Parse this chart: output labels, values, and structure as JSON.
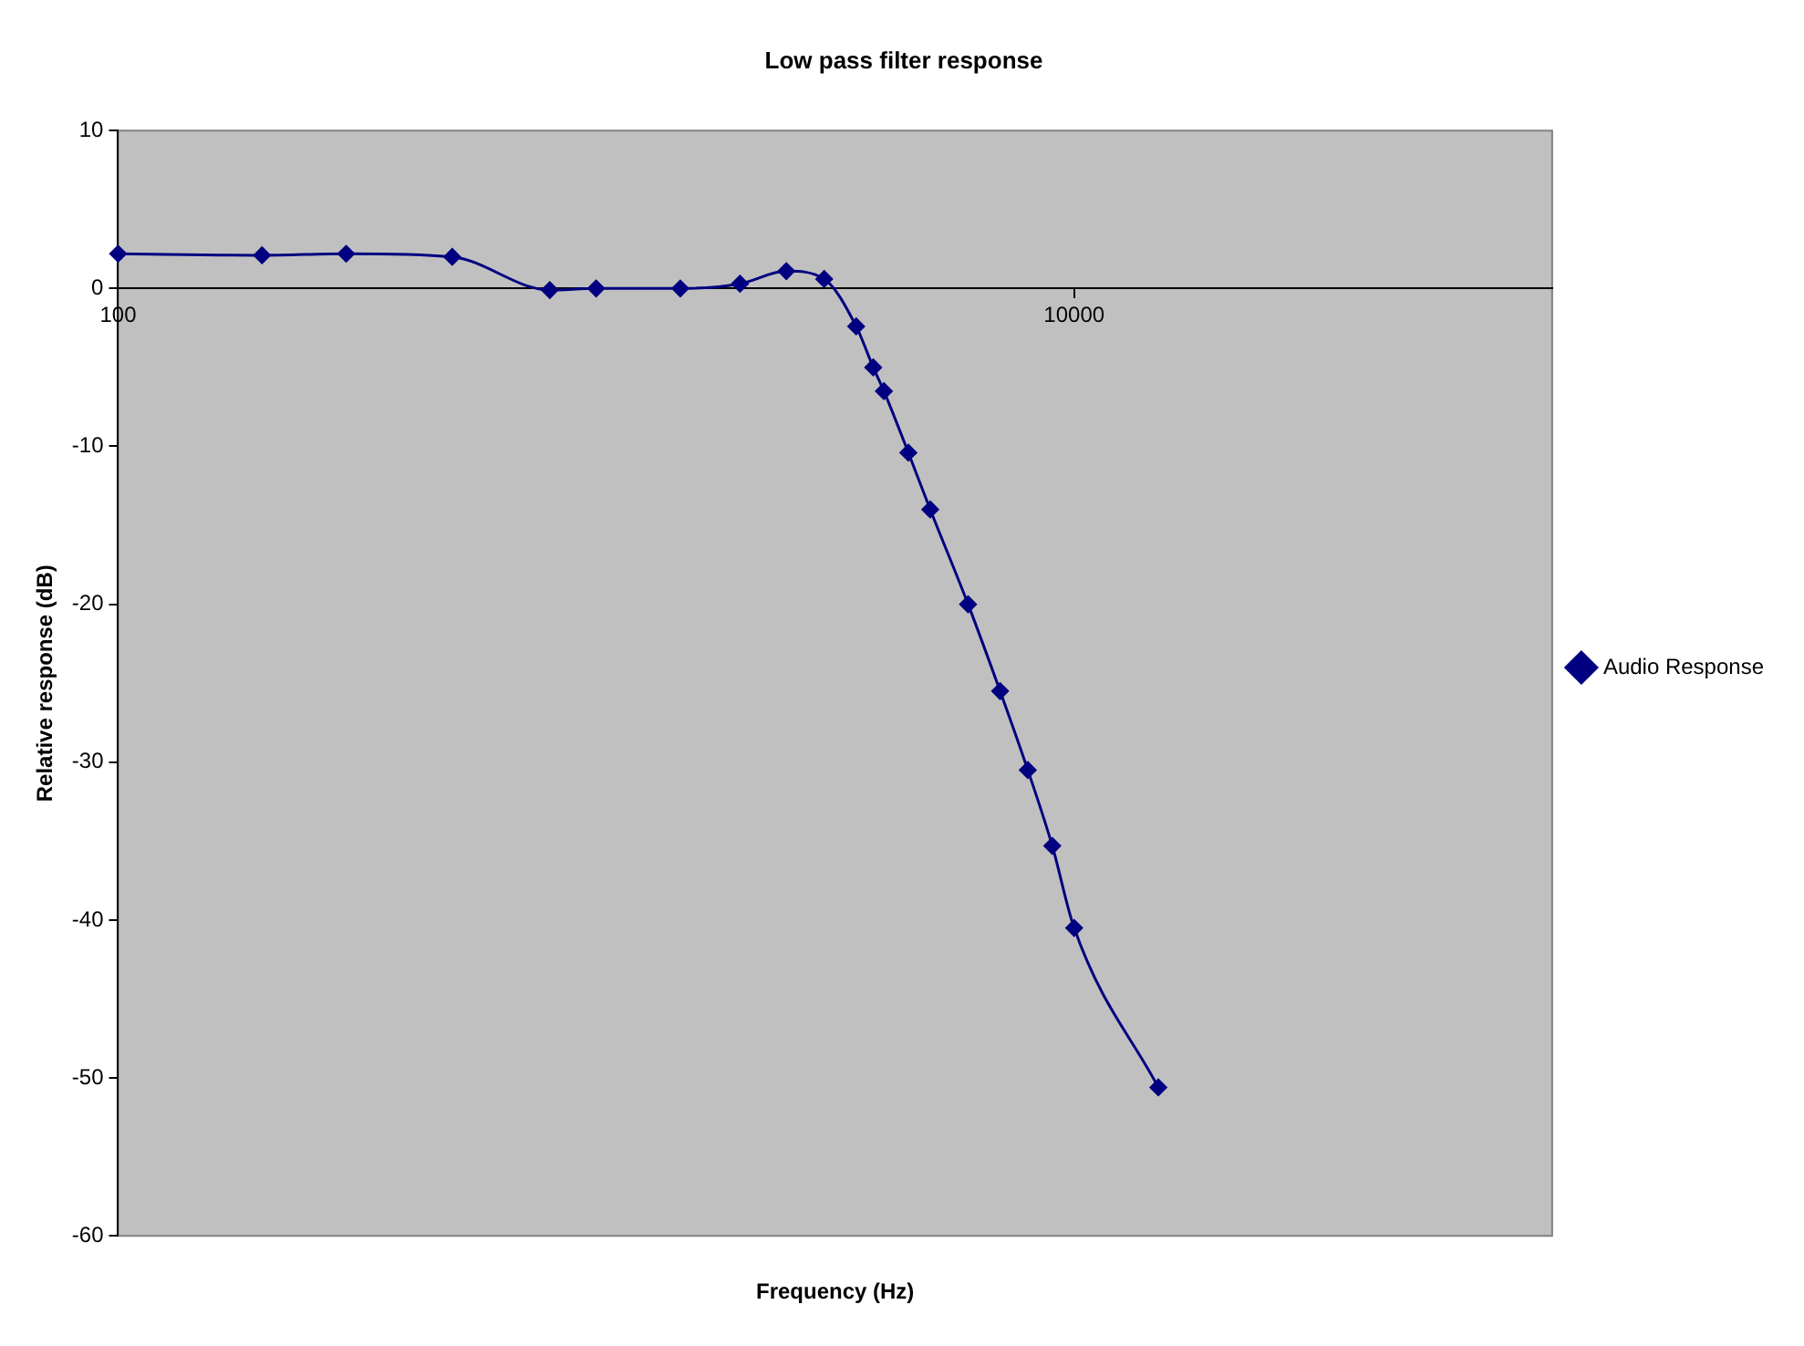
{
  "chart_data": {
    "type": "line",
    "title": "Low pass filter response",
    "xlabel": "Frequency (Hz)",
    "ylabel": "Relative response (dB)",
    "x": [
      100,
      200,
      300,
      500,
      800,
      1000,
      1500,
      2000,
      2500,
      3000,
      3500,
      3800,
      4000,
      4500,
      5000,
      6000,
      7000,
      8000,
      9000,
      10000,
      15000
    ],
    "series": [
      {
        "name": "Audio Response",
        "color": "#000080",
        "values": [
          2.2,
          2.1,
          2.2,
          2.0,
          -0.1,
          0,
          0,
          0.3,
          1.1,
          0.6,
          -2.4,
          -5.0,
          -6.5,
          -10.4,
          -14.0,
          -20.0,
          -25.5,
          -30.5,
          -35.3,
          -40.5,
          -50.6
        ]
      }
    ],
    "log": "x",
    "xlim": [
      100,
      100000
    ],
    "xticks": [
      100,
      10000
    ],
    "ylim": [
      -60,
      10
    ],
    "yticks": [
      -60,
      -50,
      -40,
      -30,
      -20,
      -10,
      0,
      10
    ],
    "grid": false,
    "legend": "right",
    "marker": "diamond",
    "line_style": "solid"
  }
}
